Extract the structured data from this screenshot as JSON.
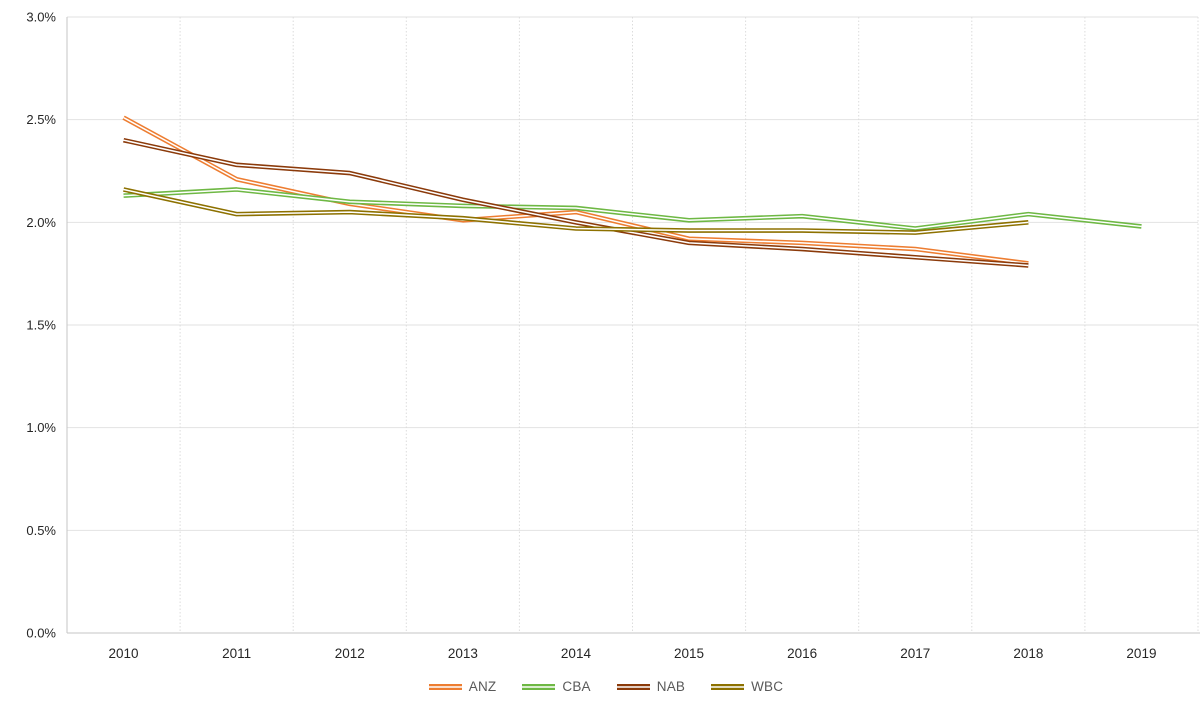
{
  "chart_data": {
    "type": "line",
    "title": "",
    "xlabel": "",
    "ylabel": "",
    "x": [
      "2010",
      "2011",
      "2012",
      "2013",
      "2014",
      "2015",
      "2016",
      "2017",
      "2018",
      "2019"
    ],
    "y_ticks": [
      "0.0%",
      "0.5%",
      "1.0%",
      "1.5%",
      "2.0%",
      "2.5%",
      "3.0%"
    ],
    "y_tick_values": [
      0.0,
      0.5,
      1.0,
      1.5,
      2.0,
      2.5,
      3.0
    ],
    "ylim": [
      0.0,
      3.0
    ],
    "y_unit": "%",
    "grid": true,
    "legend_position": "bottom",
    "line_style": "thick stroke with thin white center line",
    "series": [
      {
        "name": "ANZ",
        "color": "#ED7D31",
        "values": [
          2.51,
          2.21,
          2.09,
          2.01,
          2.05,
          1.92,
          1.9,
          1.87,
          1.8,
          null
        ]
      },
      {
        "name": "CBA",
        "color": "#6EB844",
        "values": [
          2.13,
          2.16,
          2.1,
          2.08,
          2.07,
          2.01,
          2.03,
          1.97,
          2.04,
          1.98
        ]
      },
      {
        "name": "NAB",
        "color": "#8B3A0A",
        "values": [
          2.4,
          2.28,
          2.24,
          2.11,
          2.0,
          1.9,
          1.87,
          1.83,
          1.79,
          null
        ]
      },
      {
        "name": "WBC",
        "color": "#8D7100",
        "values": [
          2.16,
          2.04,
          2.05,
          2.02,
          1.97,
          1.96,
          1.96,
          1.95,
          2.0,
          null
        ]
      }
    ]
  },
  "style": {
    "background": "#FFFFFF",
    "h_gridline_color": "#E2E2E2",
    "v_gridline_color": "#DCDCDC",
    "axis_line_color": "#C6C6C6",
    "tick_label_color": "#262626",
    "legend_text_color": "#595959",
    "white_center_color": "#FFFFFF"
  }
}
